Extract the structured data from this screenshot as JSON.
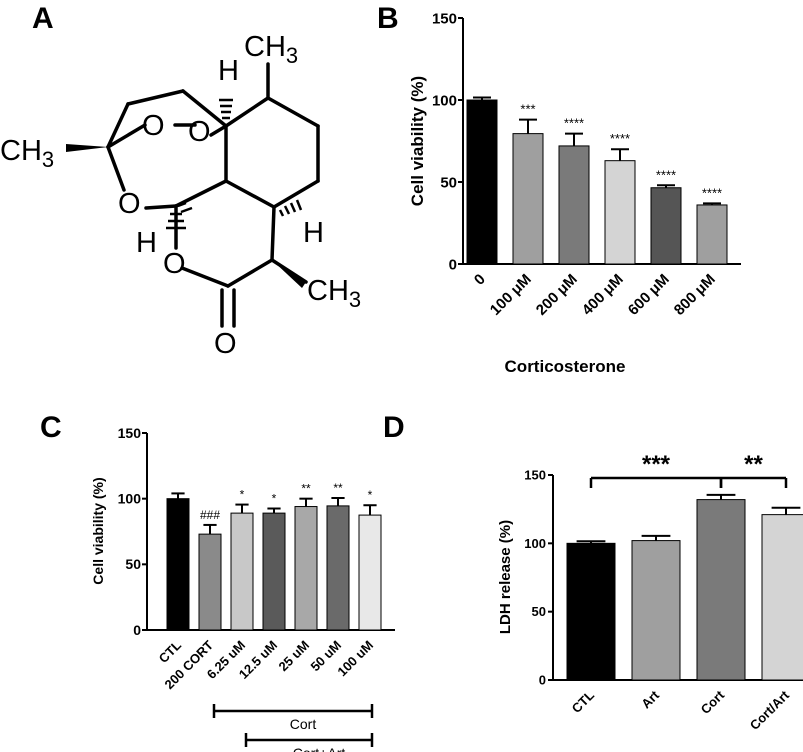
{
  "panels": {
    "a": "A",
    "b": "B",
    "c": "C",
    "d": "D"
  },
  "structure": {
    "ch3_top": "CH3",
    "ch3_left": "CH3",
    "ch3_right": "CH3",
    "h_top": "H",
    "h_right": "H",
    "h_left": "H",
    "o1": "O",
    "o2": "O",
    "o3": "O",
    "o4": "O",
    "o5": "O"
  },
  "chart_data": [
    {
      "panel": "B",
      "type": "bar",
      "categories": [
        "0",
        "100 μM",
        "200 μM",
        "400 μM",
        "600 μM",
        "800 μM"
      ],
      "values": [
        100,
        79.5,
        72,
        63,
        46.5,
        36
      ],
      "errors": [
        1.5,
        8.5,
        7.5,
        7,
        1.5,
        1
      ],
      "significance": [
        "",
        "***",
        "****",
        "****",
        "****",
        "****"
      ],
      "colors": [
        "#000000",
        "#9f9f9f",
        "#7a7a7a",
        "#d4d4d4",
        "#555555",
        "#9f9f9f"
      ],
      "ylabel": "Cell viability (%)",
      "xlabel": "Corticosterone",
      "ylim": [
        0,
        150
      ],
      "yticks": [
        0,
        50,
        100,
        150
      ]
    },
    {
      "panel": "C",
      "type": "bar",
      "categories": [
        "CTL",
        "200 CORT",
        "6.25  uM",
        "12.5 uM",
        "25 uM",
        "50 uM",
        "100 uM"
      ],
      "values": [
        100,
        73,
        89,
        89,
        94,
        94.5,
        87.5
      ],
      "errors": [
        4,
        7,
        6.5,
        3.5,
        6,
        6,
        7.5
      ],
      "significance": [
        "",
        "###",
        "*",
        "*",
        "**",
        "**",
        "*"
      ],
      "colors": [
        "#000000",
        "#8a8a8a",
        "#c8c8c8",
        "#5a5a5a",
        "#a8a8a8",
        "#6a6a6a",
        "#e8e8e8"
      ],
      "ylabel": "Cell viability (%)",
      "ylim": [
        0,
        150
      ],
      "yticks": [
        0,
        50,
        100,
        150
      ],
      "brackets": [
        "Cort",
        "Cort+Art"
      ]
    },
    {
      "panel": "D",
      "type": "bar",
      "categories": [
        "CTL",
        "Art",
        "Cort",
        "Cort/Art"
      ],
      "values": [
        100,
        102,
        132,
        121
      ],
      "errors": [
        1.5,
        3.5,
        3.5,
        5
      ],
      "colors": [
        "#000000",
        "#9f9f9f",
        "#7a7a7a",
        "#d4d4d4"
      ],
      "ylabel": "LDH release (%)",
      "ylim": [
        0,
        150
      ],
      "yticks": [
        0,
        50,
        100,
        150
      ],
      "comparisons": [
        {
          "from": 0,
          "to": 2,
          "label": "***"
        },
        {
          "from": 2,
          "to": 3,
          "label": "**"
        }
      ]
    }
  ]
}
